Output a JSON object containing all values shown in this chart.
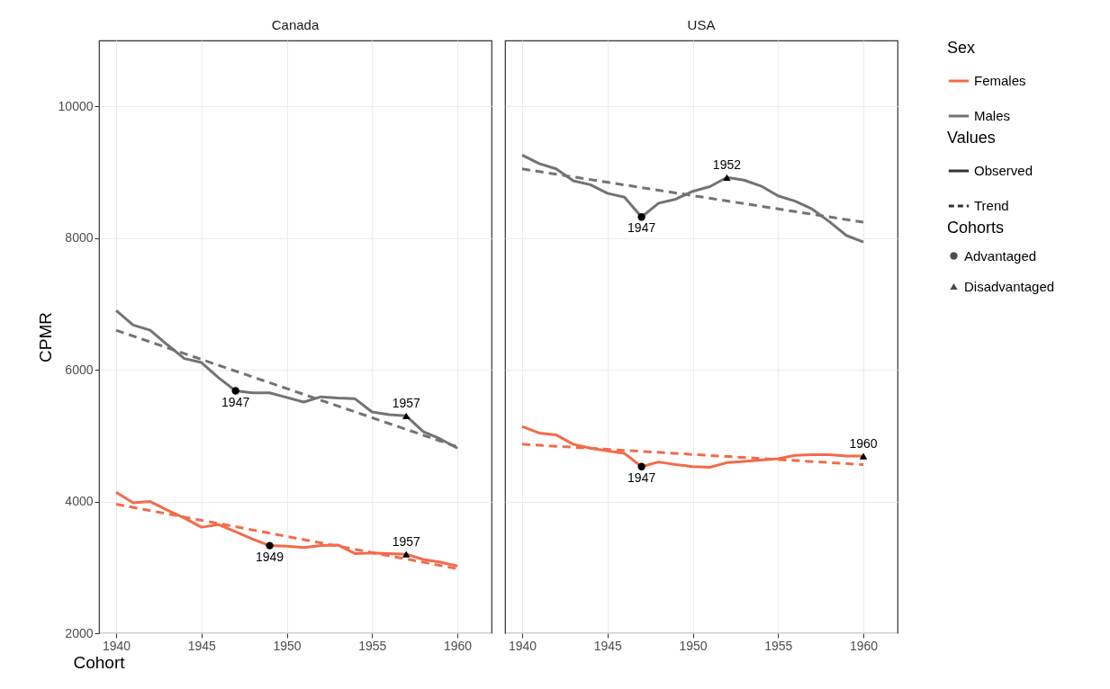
{
  "chart_data": [
    {
      "type": "line",
      "title": "Canada",
      "xlabel": "Cohort",
      "ylabel": "CPMR",
      "grid": true,
      "xlim": [
        1939,
        1962
      ],
      "xticks": [
        1940,
        1945,
        1950,
        1955,
        1960
      ],
      "ylim": [
        2000,
        11000
      ],
      "yticks": [
        2000,
        4000,
        6000,
        8000,
        10000
      ],
      "x": [
        1940,
        1941,
        1942,
        1943,
        1944,
        1945,
        1946,
        1947,
        1948,
        1949,
        1950,
        1951,
        1952,
        1953,
        1954,
        1955,
        1956,
        1957,
        1958,
        1959,
        1960
      ],
      "series": [
        {
          "line_style": "solid",
          "color": "#f26b4b",
          "values": [
            4140,
            3980,
            4000,
            3870,
            3750,
            3610,
            3650,
            3540,
            3430,
            3330,
            3320,
            3300,
            3330,
            3340,
            3210,
            3220,
            3210,
            3200,
            3120,
            3080,
            3020
          ]
        },
        {
          "line_style": "solid",
          "color": "#737373",
          "values": [
            6900,
            6680,
            6600,
            6380,
            6170,
            6110,
            5880,
            5680,
            5650,
            5650,
            5580,
            5510,
            5590,
            5570,
            5560,
            5360,
            5320,
            5300,
            5060,
            4950,
            4810
          ]
        },
        {
          "line_style": "dashed",
          "color": "#f26b4b",
          "x": [
            1940,
            1960
          ],
          "values": [
            3960,
            2980
          ]
        },
        {
          "line_style": "dashed",
          "color": "#737373",
          "x": [
            1940,
            1960
          ],
          "values": [
            6600,
            4830
          ]
        },
        {
          "type": "scatter",
          "marker": "circle",
          "color": "#000000",
          "x": [
            1947,
            1949
          ],
          "values": [
            5680,
            3330
          ]
        },
        {
          "type": "scatter",
          "marker": "triangle",
          "color": "#000000",
          "x": [
            1957,
            1957
          ],
          "values": [
            5300,
            3200
          ]
        }
      ],
      "annotations": [
        {
          "text": "1947",
          "x": 1947,
          "y": 5680
        },
        {
          "text": "1949",
          "x": 1949,
          "y": 3330
        },
        {
          "text": "1957",
          "x": 1957,
          "y": 5300
        },
        {
          "text": "1957",
          "x": 1957,
          "y": 3200
        }
      ]
    },
    {
      "type": "line",
      "title": "USA",
      "legend_title": "Sex",
      "legend": "right",
      "grid": true,
      "tick_labels": "x",
      "xlim": [
        1939,
        1962
      ],
      "xticks": [
        1940,
        1945,
        1950,
        1955,
        1960
      ],
      "ylim": [
        2000,
        11000
      ],
      "yticks": [
        2000,
        4000,
        6000,
        8000,
        10000
      ],
      "x": [
        1940,
        1941,
        1942,
        1943,
        1944,
        1945,
        1946,
        1947,
        1948,
        1949,
        1950,
        1951,
        1952,
        1953,
        1954,
        1955,
        1956,
        1957,
        1958,
        1959,
        1960
      ],
      "series": [
        {
          "name": "Females",
          "line_style": "solid",
          "color": "#f26b4b",
          "values": [
            5140,
            5040,
            5010,
            4870,
            4810,
            4770,
            4730,
            4530,
            4600,
            4560,
            4530,
            4520,
            4590,
            4610,
            4630,
            4650,
            4700,
            4710,
            4710,
            4690,
            4690
          ]
        },
        {
          "name": "Males",
          "line_style": "solid",
          "color": "#737373",
          "values": [
            9260,
            9130,
            9050,
            8870,
            8810,
            8680,
            8620,
            8320,
            8530,
            8590,
            8710,
            8780,
            8920,
            8880,
            8790,
            8640,
            8560,
            8440,
            8250,
            8040,
            7940
          ]
        },
        {
          "name": "Observed",
          "line_style": "solid",
          "color": "#333333",
          "values": [
            null,
            null,
            null,
            null,
            null,
            null,
            null,
            null,
            null,
            null,
            null,
            null,
            null,
            null,
            null,
            null,
            null,
            null,
            null,
            null,
            null
          ]
        },
        {
          "name": "Trend",
          "line_style": "dashed",
          "color": "#333333",
          "values": [
            null,
            null,
            null,
            null,
            null,
            null,
            null,
            null,
            null,
            null,
            null,
            null,
            null,
            null,
            null,
            null,
            null,
            null,
            null,
            null,
            null
          ]
        },
        {
          "line_style": "dashed",
          "color": "#f26b4b",
          "x": [
            1940,
            1960
          ],
          "values": [
            4870,
            4560
          ]
        },
        {
          "line_style": "dashed",
          "color": "#737373",
          "x": [
            1940,
            1960
          ],
          "values": [
            9050,
            8240
          ]
        },
        {
          "type": "scatter",
          "name": "Advantaged",
          "marker": "circle",
          "color": "#000000",
          "x": [
            1947,
            1947
          ],
          "values": [
            8320,
            4530
          ]
        },
        {
          "type": "scatter",
          "name": "Disadvantaged",
          "marker": "triangle",
          "color": "#000000",
          "x": [
            1952,
            1960
          ],
          "values": [
            8920,
            4690
          ]
        }
      ],
      "annotations": [
        "Values",
        "Cohorts",
        {
          "text": "1947",
          "x": 1947,
          "y": 8320
        },
        {
          "text": "1952",
          "x": 1952,
          "y": 8920
        },
        {
          "text": "1947",
          "x": 1947,
          "y": 4530
        },
        {
          "text": "1960",
          "x": 1960,
          "y": 4690
        }
      ]
    }
  ]
}
